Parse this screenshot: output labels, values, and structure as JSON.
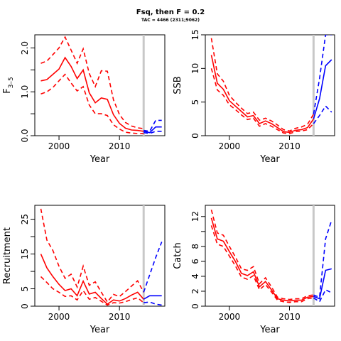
{
  "title": "Fsq, then F = 0.2",
  "subtitle": "TAC = 4466 (2311;9062)",
  "colors": {
    "historical": "#ff0000",
    "projection": "#0000ff",
    "divider": "#c8c8c8"
  },
  "chart_data": [
    {
      "type": "line",
      "ylabel": "F̅ 3-5",
      "ylabel_main": "F",
      "ylabel_sub": "3–5",
      "xlabel": "Year",
      "xlim": [
        1996,
        2017.5
      ],
      "ylim": [
        0,
        2.3
      ],
      "xticks": [
        2000,
        2010
      ],
      "yticks": [
        0,
        0.5,
        1,
        1.5,
        2
      ],
      "ytick_labels": [
        "0.0",
        "",
        "1.0",
        "",
        "2.0"
      ],
      "divider_x": 2014,
      "series": [
        {
          "kind": "historical",
          "style": "solid",
          "x": [
            1997,
            1998,
            1999,
            2000,
            2001,
            2002,
            2003,
            2004,
            2005,
            2006,
            2007,
            2008,
            2009,
            2010,
            2011,
            2012,
            2013,
            2014
          ],
          "values": [
            1.25,
            1.28,
            1.4,
            1.52,
            1.78,
            1.58,
            1.3,
            1.5,
            0.98,
            0.75,
            0.86,
            0.83,
            0.48,
            0.28,
            0.17,
            0.13,
            0.12,
            0.1
          ]
        },
        {
          "kind": "historical",
          "style": "dashed",
          "x": [
            1997,
            1998,
            1999,
            2000,
            2001,
            2002,
            2003,
            2004,
            2005,
            2006,
            2007,
            2008,
            2009,
            2010,
            2011,
            2012,
            2013,
            2014
          ],
          "values": [
            1.65,
            1.7,
            1.85,
            2.0,
            2.25,
            1.95,
            1.65,
            1.98,
            1.42,
            1.12,
            1.48,
            1.47,
            0.82,
            0.48,
            0.3,
            0.22,
            0.18,
            0.16
          ]
        },
        {
          "kind": "historical",
          "style": "dashed",
          "x": [
            1997,
            1998,
            1999,
            2000,
            2001,
            2002,
            2003,
            2004,
            2005,
            2006,
            2007,
            2008,
            2009,
            2010,
            2011,
            2012,
            2013,
            2014
          ],
          "values": [
            0.95,
            1.0,
            1.1,
            1.25,
            1.4,
            1.2,
            1.02,
            1.12,
            0.7,
            0.5,
            0.5,
            0.46,
            0.25,
            0.15,
            0.08,
            0.06,
            0.05,
            0.05
          ]
        },
        {
          "kind": "projection",
          "style": "solid",
          "x": [
            2014,
            2015,
            2016,
            2017
          ],
          "values": [
            0.1,
            0.07,
            0.2,
            0.2
          ]
        },
        {
          "kind": "projection",
          "style": "dashed",
          "x": [
            2014,
            2015,
            2016,
            2017
          ],
          "values": [
            0.12,
            0.1,
            0.35,
            0.35
          ]
        },
        {
          "kind": "projection",
          "style": "dashed",
          "x": [
            2014,
            2015,
            2016,
            2017
          ],
          "values": [
            0.07,
            0.05,
            0.1,
            0.1
          ]
        }
      ]
    },
    {
      "type": "line",
      "ylabel": "SSB",
      "xlabel": "Year",
      "xlim": [
        1996,
        2017.5
      ],
      "ylim": [
        0,
        15
      ],
      "xticks": [
        2000,
        2010
      ],
      "yticks": [
        0,
        5,
        10,
        15
      ],
      "ytick_labels": [
        "0",
        "5",
        "10",
        "15"
      ],
      "divider_x": 2014,
      "series": [
        {
          "kind": "historical",
          "style": "solid",
          "x": [
            1997,
            1998,
            1999,
            2000,
            2001,
            2002,
            2003,
            2004,
            2005,
            2006,
            2007,
            2008,
            2009,
            2010,
            2011,
            2012,
            2013,
            2014
          ],
          "values": [
            12.0,
            7.8,
            6.9,
            5.2,
            4.4,
            3.6,
            2.8,
            3.0,
            1.8,
            2.2,
            1.8,
            1.2,
            0.6,
            0.5,
            0.8,
            0.9,
            1.2,
            2.5
          ]
        },
        {
          "kind": "historical",
          "style": "dashed",
          "x": [
            1997,
            1998,
            1999,
            2000,
            2001,
            2002,
            2003,
            2004,
            2005,
            2006,
            2007,
            2008,
            2009,
            2010,
            2011,
            2012,
            2013,
            2014
          ],
          "values": [
            14.5,
            9.2,
            8.1,
            6.0,
            5.0,
            4.1,
            3.3,
            3.5,
            2.3,
            2.6,
            2.2,
            1.6,
            0.9,
            0.7,
            1.1,
            1.3,
            1.7,
            3.2
          ]
        },
        {
          "kind": "historical",
          "style": "dashed",
          "x": [
            1997,
            1998,
            1999,
            2000,
            2001,
            2002,
            2003,
            2004,
            2005,
            2006,
            2007,
            2008,
            2009,
            2010,
            2011,
            2012,
            2013,
            2014
          ],
          "values": [
            10.0,
            6.8,
            6.0,
            4.6,
            3.9,
            3.1,
            2.4,
            2.6,
            1.4,
            1.8,
            1.4,
            0.9,
            0.4,
            0.3,
            0.6,
            0.7,
            0.9,
            1.8
          ]
        },
        {
          "kind": "projection",
          "style": "solid",
          "x": [
            2014,
            2015,
            2016,
            2017
          ],
          "values": [
            2.5,
            5.5,
            10.4,
            11.3
          ]
        },
        {
          "kind": "projection",
          "style": "dashed",
          "x": [
            2014,
            2015,
            2016,
            2017
          ],
          "values": [
            3.2,
            8.5,
            15.0,
            15.0
          ]
        },
        {
          "kind": "projection",
          "style": "dashed",
          "x": [
            2014,
            2015,
            2016,
            2017
          ],
          "values": [
            1.8,
            3.0,
            4.4,
            3.5
          ]
        }
      ]
    },
    {
      "type": "line",
      "ylabel": "Recruitment",
      "xlabel": "Year",
      "xlim": [
        1996,
        2017.5
      ],
      "ylim": [
        0,
        29
      ],
      "xticks": [
        2000,
        2010
      ],
      "yticks": [
        0,
        5,
        10,
        15,
        20,
        25
      ],
      "ytick_labels": [
        "0",
        "5",
        "",
        "15",
        "",
        "25"
      ],
      "divider_x": 2014,
      "series": [
        {
          "kind": "historical",
          "style": "solid",
          "x": [
            1997,
            1998,
            1999,
            2000,
            2001,
            2002,
            2003,
            2004,
            2005,
            2006,
            2007,
            2008,
            2009,
            2010,
            2011,
            2012,
            2013,
            2014
          ],
          "values": [
            15.0,
            11.0,
            8.5,
            6.3,
            4.5,
            5.0,
            3.0,
            7.2,
            3.5,
            4.0,
            2.2,
            0.6,
            1.8,
            1.5,
            2.2,
            3.2,
            4.0,
            2.0
          ]
        },
        {
          "kind": "historical",
          "style": "dashed",
          "x": [
            1997,
            1998,
            1999,
            2000,
            2001,
            2002,
            2003,
            2004,
            2005,
            2006,
            2007,
            2008,
            2009,
            2010,
            2011,
            2012,
            2013,
            2014
          ],
          "values": [
            28.0,
            19.0,
            16.0,
            11.5,
            8.0,
            9.2,
            5.5,
            11.5,
            6.0,
            7.0,
            4.0,
            1.2,
            3.4,
            2.8,
            4.2,
            5.8,
            7.3,
            4.0
          ]
        },
        {
          "kind": "historical",
          "style": "dashed",
          "x": [
            1997,
            1998,
            1999,
            2000,
            2001,
            2002,
            2003,
            2004,
            2005,
            2006,
            2007,
            2008,
            2009,
            2010,
            2011,
            2012,
            2013,
            2014
          ],
          "values": [
            8.5,
            6.8,
            5.0,
            4.0,
            2.8,
            3.0,
            1.8,
            4.5,
            2.0,
            2.5,
            1.4,
            0.3,
            1.0,
            0.9,
            1.3,
            1.9,
            2.4,
            1.0
          ]
        },
        {
          "kind": "projection",
          "style": "solid",
          "x": [
            2014,
            2015,
            2016,
            2017
          ],
          "values": [
            2.0,
            3.0,
            3.0,
            3.0
          ]
        },
        {
          "kind": "projection",
          "style": "dashed",
          "x": [
            2014,
            2015,
            2016,
            2017
          ],
          "values": [
            4.0,
            9.0,
            14.0,
            18.5
          ]
        },
        {
          "kind": "projection",
          "style": "dashed",
          "x": [
            2014,
            2015,
            2016,
            2017
          ],
          "values": [
            1.0,
            1.2,
            0.6,
            0.3
          ]
        }
      ]
    },
    {
      "type": "line",
      "ylabel": "Catch",
      "xlabel": "Year",
      "xlim": [
        1996,
        2017.5
      ],
      "ylim": [
        0,
        13.5
      ],
      "xticks": [
        2000,
        2010
      ],
      "yticks": [
        0,
        2,
        4,
        6,
        8,
        10,
        12
      ],
      "ytick_labels": [
        "0",
        "2",
        "4",
        "6",
        "8",
        "",
        "12"
      ],
      "divider_x": 2014,
      "series": [
        {
          "kind": "historical",
          "style": "solid",
          "x": [
            1997,
            1998,
            1999,
            2000,
            2001,
            2002,
            2003,
            2004,
            2005,
            2006,
            2007,
            2008,
            2009,
            2010,
            2011,
            2012,
            2013,
            2014
          ],
          "values": [
            11.8,
            9.0,
            8.7,
            7.3,
            6.0,
            4.4,
            4.1,
            4.6,
            2.6,
            3.3,
            2.2,
            1.0,
            0.8,
            0.7,
            0.8,
            0.8,
            1.2,
            1.3
          ]
        },
        {
          "kind": "historical",
          "style": "dashed",
          "x": [
            1997,
            1998,
            1999,
            2000,
            2001,
            2002,
            2003,
            2004,
            2005,
            2006,
            2007,
            2008,
            2009,
            2010,
            2011,
            2012,
            2013,
            2014
          ],
          "values": [
            12.9,
            9.8,
            9.5,
            8.0,
            6.6,
            5.0,
            4.8,
            5.3,
            3.0,
            3.8,
            2.6,
            1.2,
            1.0,
            0.9,
            1.0,
            1.0,
            1.4,
            1.5
          ]
        },
        {
          "kind": "historical",
          "style": "dashed",
          "x": [
            1997,
            1998,
            1999,
            2000,
            2001,
            2002,
            2003,
            2004,
            2005,
            2006,
            2007,
            2008,
            2009,
            2010,
            2011,
            2012,
            2013,
            2014
          ],
          "values": [
            10.8,
            8.3,
            8.0,
            6.7,
            5.4,
            3.9,
            3.6,
            4.1,
            2.2,
            2.9,
            1.9,
            0.8,
            0.6,
            0.5,
            0.6,
            0.6,
            1.0,
            1.1
          ]
        },
        {
          "kind": "projection",
          "style": "solid",
          "x": [
            2014,
            2015,
            2016,
            2017
          ],
          "values": [
            1.3,
            1.0,
            4.8,
            5.0
          ]
        },
        {
          "kind": "projection",
          "style": "dashed",
          "x": [
            2014,
            2015,
            2016,
            2017
          ],
          "values": [
            1.5,
            1.2,
            9.0,
            11.5
          ]
        },
        {
          "kind": "projection",
          "style": "dashed",
          "x": [
            2014,
            2015,
            2016,
            2017
          ],
          "values": [
            1.1,
            0.6,
            2.2,
            1.8
          ]
        }
      ]
    }
  ]
}
